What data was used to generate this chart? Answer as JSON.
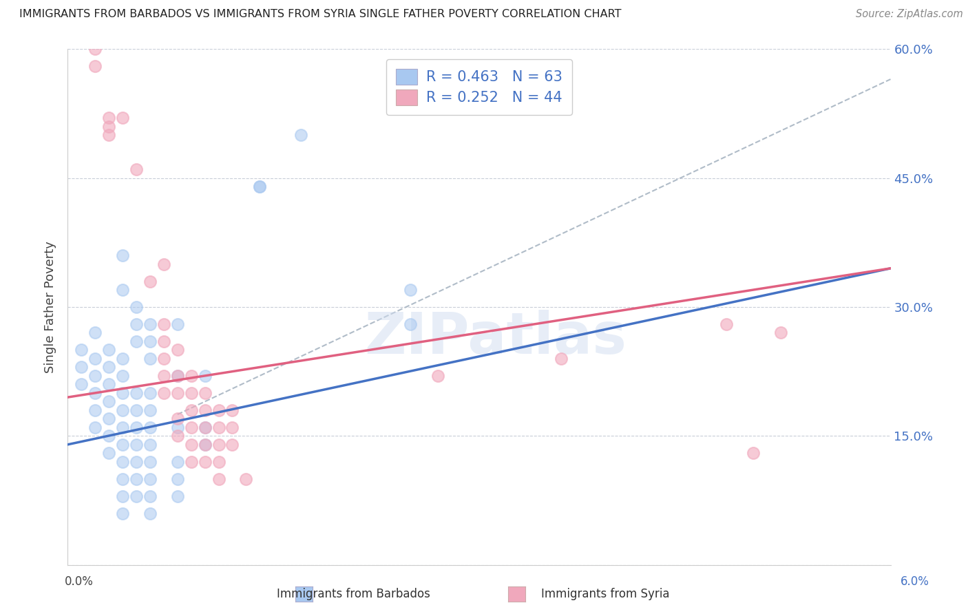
{
  "title": "IMMIGRANTS FROM BARBADOS VS IMMIGRANTS FROM SYRIA SINGLE FATHER POVERTY CORRELATION CHART",
  "source": "Source: ZipAtlas.com",
  "ylabel": "Single Father Poverty",
  "x_min": 0.0,
  "x_max": 0.06,
  "y_min": 0.0,
  "y_max": 0.6,
  "y_ticks": [
    0.0,
    0.15,
    0.3,
    0.45,
    0.6
  ],
  "y_tick_labels": [
    "",
    "15.0%",
    "30.0%",
    "45.0%",
    "60.0%"
  ],
  "barbados_color": "#a8c8f0",
  "syria_color": "#f0a8bc",
  "barbados_line_color": "#4472c4",
  "syria_line_color": "#e06080",
  "dash_color": "#b0bcc8",
  "barbados_R": 0.463,
  "barbados_N": 63,
  "syria_R": 0.252,
  "syria_N": 44,
  "watermark": "ZIPatlas",
  "tick_color": "#4472c4",
  "barbados_points": [
    [
      0.001,
      0.25
    ],
    [
      0.001,
      0.23
    ],
    [
      0.001,
      0.21
    ],
    [
      0.002,
      0.27
    ],
    [
      0.002,
      0.24
    ],
    [
      0.002,
      0.22
    ],
    [
      0.002,
      0.2
    ],
    [
      0.002,
      0.18
    ],
    [
      0.002,
      0.16
    ],
    [
      0.003,
      0.25
    ],
    [
      0.003,
      0.23
    ],
    [
      0.003,
      0.21
    ],
    [
      0.003,
      0.19
    ],
    [
      0.003,
      0.17
    ],
    [
      0.003,
      0.15
    ],
    [
      0.003,
      0.13
    ],
    [
      0.004,
      0.36
    ],
    [
      0.004,
      0.32
    ],
    [
      0.004,
      0.24
    ],
    [
      0.004,
      0.22
    ],
    [
      0.004,
      0.2
    ],
    [
      0.004,
      0.18
    ],
    [
      0.004,
      0.16
    ],
    [
      0.004,
      0.14
    ],
    [
      0.004,
      0.12
    ],
    [
      0.004,
      0.1
    ],
    [
      0.004,
      0.08
    ],
    [
      0.004,
      0.06
    ],
    [
      0.005,
      0.3
    ],
    [
      0.005,
      0.28
    ],
    [
      0.005,
      0.26
    ],
    [
      0.005,
      0.2
    ],
    [
      0.005,
      0.18
    ],
    [
      0.005,
      0.16
    ],
    [
      0.005,
      0.14
    ],
    [
      0.005,
      0.12
    ],
    [
      0.005,
      0.1
    ],
    [
      0.005,
      0.08
    ],
    [
      0.006,
      0.28
    ],
    [
      0.006,
      0.26
    ],
    [
      0.006,
      0.24
    ],
    [
      0.006,
      0.2
    ],
    [
      0.006,
      0.18
    ],
    [
      0.006,
      0.16
    ],
    [
      0.006,
      0.14
    ],
    [
      0.006,
      0.12
    ],
    [
      0.006,
      0.1
    ],
    [
      0.006,
      0.08
    ],
    [
      0.006,
      0.06
    ],
    [
      0.008,
      0.28
    ],
    [
      0.008,
      0.22
    ],
    [
      0.008,
      0.16
    ],
    [
      0.008,
      0.12
    ],
    [
      0.008,
      0.1
    ],
    [
      0.008,
      0.08
    ],
    [
      0.01,
      0.22
    ],
    [
      0.01,
      0.16
    ],
    [
      0.01,
      0.14
    ],
    [
      0.014,
      0.44
    ],
    [
      0.014,
      0.44
    ],
    [
      0.017,
      0.5
    ],
    [
      0.025,
      0.32
    ],
    [
      0.025,
      0.28
    ]
  ],
  "syria_points": [
    [
      0.002,
      0.6
    ],
    [
      0.002,
      0.58
    ],
    [
      0.003,
      0.52
    ],
    [
      0.003,
      0.51
    ],
    [
      0.003,
      0.5
    ],
    [
      0.004,
      0.52
    ],
    [
      0.005,
      0.46
    ],
    [
      0.006,
      0.33
    ],
    [
      0.007,
      0.35
    ],
    [
      0.007,
      0.28
    ],
    [
      0.007,
      0.26
    ],
    [
      0.007,
      0.24
    ],
    [
      0.007,
      0.22
    ],
    [
      0.007,
      0.2
    ],
    [
      0.008,
      0.25
    ],
    [
      0.008,
      0.22
    ],
    [
      0.008,
      0.2
    ],
    [
      0.008,
      0.17
    ],
    [
      0.008,
      0.15
    ],
    [
      0.009,
      0.22
    ],
    [
      0.009,
      0.2
    ],
    [
      0.009,
      0.18
    ],
    [
      0.009,
      0.16
    ],
    [
      0.009,
      0.14
    ],
    [
      0.009,
      0.12
    ],
    [
      0.01,
      0.2
    ],
    [
      0.01,
      0.18
    ],
    [
      0.01,
      0.16
    ],
    [
      0.01,
      0.14
    ],
    [
      0.01,
      0.12
    ],
    [
      0.011,
      0.18
    ],
    [
      0.011,
      0.16
    ],
    [
      0.011,
      0.14
    ],
    [
      0.011,
      0.12
    ],
    [
      0.011,
      0.1
    ],
    [
      0.012,
      0.18
    ],
    [
      0.012,
      0.16
    ],
    [
      0.012,
      0.14
    ],
    [
      0.013,
      0.1
    ],
    [
      0.027,
      0.22
    ],
    [
      0.036,
      0.24
    ],
    [
      0.048,
      0.28
    ],
    [
      0.05,
      0.13
    ],
    [
      0.052,
      0.27
    ]
  ]
}
